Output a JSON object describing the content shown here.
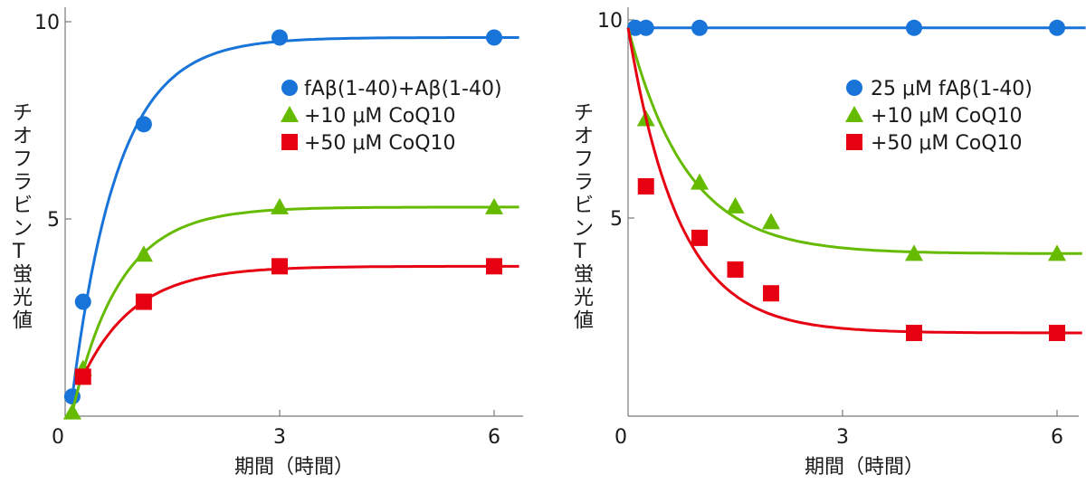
{
  "chart_data": [
    {
      "type": "line",
      "xlabel": "期間（時間）",
      "ylabel": "チオフラビンT蛍光値",
      "xticks": [
        "0",
        "3",
        "6"
      ],
      "yticks": [
        "5",
        "10"
      ],
      "xlim": [
        0,
        6.4
      ],
      "ylim": [
        0,
        10
      ],
      "legend_position": "top-right",
      "series": [
        {
          "name": "fAβ(1-40)+Aβ(1-40)",
          "color": "#1874d8",
          "marker": "circle",
          "x": [
            0.1,
            0.25,
            1.1,
            3.0,
            6.0
          ],
          "y": [
            0.5,
            2.9,
            7.4,
            9.6,
            9.6
          ]
        },
        {
          "name": "+10 μM CoQ10",
          "color": "#66bb00",
          "marker": "triangle",
          "x": [
            0.1,
            0.25,
            1.1,
            3.0,
            6.0
          ],
          "y": [
            0.1,
            1.2,
            4.1,
            5.3,
            5.3
          ]
        },
        {
          "name": "+50 μM CoQ10",
          "color": "#e60012",
          "marker": "square",
          "x": [
            0.25,
            1.1,
            3.0,
            6.0
          ],
          "y": [
            1.0,
            2.9,
            3.8,
            3.8
          ]
        }
      ]
    },
    {
      "type": "line",
      "xlabel": "期間（時間）",
      "ylabel": "チオフラビンT蛍光値",
      "xticks": [
        "0",
        "3",
        "6"
      ],
      "yticks": [
        "5",
        "10"
      ],
      "xlim": [
        0,
        6.4
      ],
      "ylim": [
        0,
        10
      ],
      "legend_position": "top-right",
      "series": [
        {
          "name": "25 μM fAβ(1-40)",
          "color": "#1874d8",
          "marker": "circle",
          "x": [
            0.1,
            0.25,
            1.0,
            4.0,
            6.0
          ],
          "y": [
            9.8,
            9.8,
            9.8,
            9.8,
            9.8
          ]
        },
        {
          "name": "+10 μM CoQ10",
          "color": "#66bb00",
          "marker": "triangle",
          "x": [
            0.25,
            1.0,
            1.5,
            2.0,
            4.0,
            6.0
          ],
          "y": [
            7.5,
            5.9,
            5.3,
            4.9,
            4.1,
            4.1
          ]
        },
        {
          "name": "+50 μM CoQ10",
          "color": "#e60012",
          "marker": "square",
          "x": [
            0.25,
            1.0,
            1.5,
            2.0,
            4.0,
            6.0
          ],
          "y": [
            5.8,
            4.5,
            3.7,
            3.1,
            2.1,
            2.1
          ]
        }
      ]
    }
  ]
}
